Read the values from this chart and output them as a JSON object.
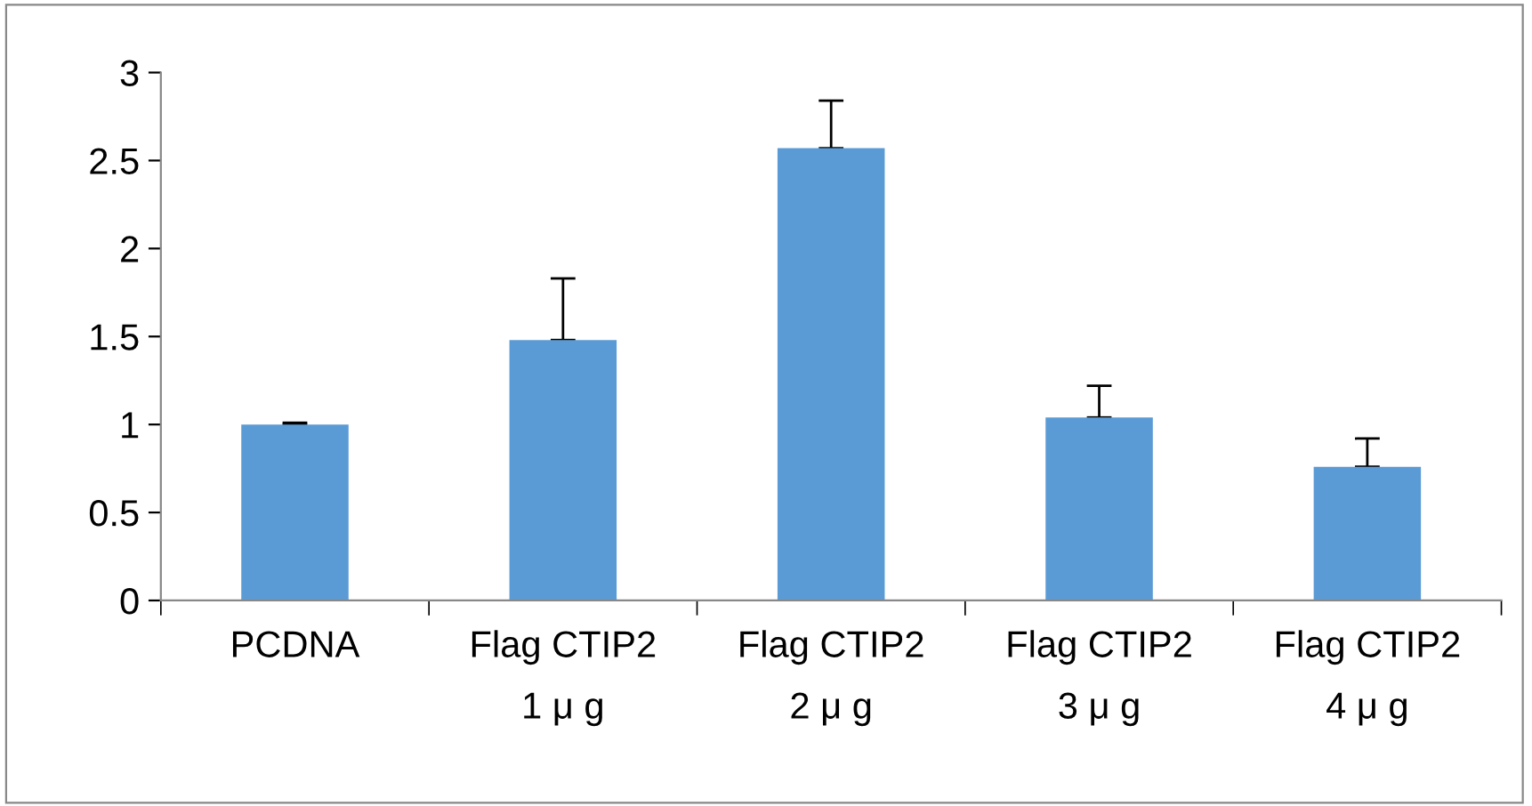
{
  "chart_data": {
    "type": "bar",
    "categories": [
      "PCDNA",
      "Flag CTIP2\n1 μ g",
      "Flag CTIP2\n2 μ g",
      "Flag CTIP2\n3 μ g",
      "Flag CTIP2\n4 μ g"
    ],
    "values": [
      1.0,
      1.48,
      2.57,
      1.04,
      0.76
    ],
    "errors": [
      [
        1.0,
        1.01
      ],
      [
        1.48,
        1.83
      ],
      [
        2.57,
        2.84
      ],
      [
        1.04,
        1.22
      ],
      [
        0.76,
        0.92
      ]
    ],
    "color": "#5b9bd5",
    "ylim": [
      0,
      3
    ],
    "yticks": [
      0,
      0.5,
      1,
      1.5,
      2,
      2.5,
      3
    ],
    "grid": false
  }
}
